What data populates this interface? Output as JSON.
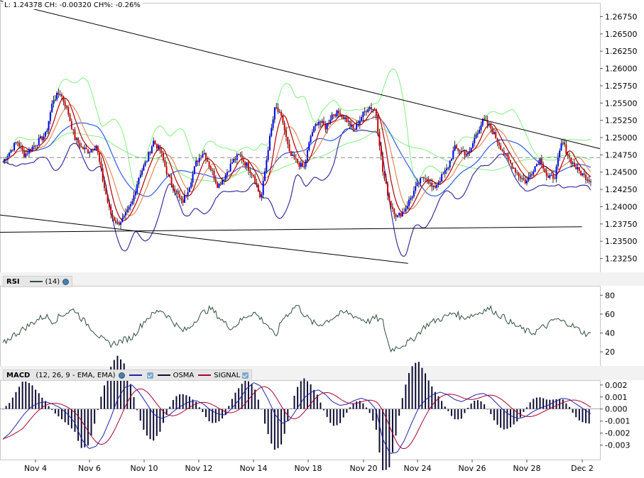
{
  "info_bar": {
    "low": "L: 1.24378",
    "change": "CH: -0.00320",
    "change_pct": "CH%: -0.26%"
  },
  "price_panel": {
    "y_ticks": [
      "1.26750",
      "1.26500",
      "1.26250",
      "1.26000",
      "1.25750",
      "1.25500",
      "1.25250",
      "1.25000",
      "1.24750",
      "1.24500",
      "1.24250",
      "1.24000",
      "1.23750",
      "1.23500",
      "1.23250"
    ],
    "reference_level": 1.2471
  },
  "rsi_panel": {
    "name": "RSI",
    "period": "(14)",
    "y_ticks": [
      "80",
      "60",
      "40",
      "20"
    ]
  },
  "macd_panel": {
    "name": "MACD",
    "params": "(12, 26, 9 - EMA, EMA)",
    "series_labels": [
      "",
      "OSMA",
      "SIGNAL"
    ],
    "y_ticks": [
      "0.002",
      "0.001",
      "0.000",
      "-0.001",
      "-0.002",
      "-0.003"
    ]
  },
  "x_axis": {
    "labels": [
      "Nov 4",
      "Nov 6",
      "Nov 10",
      "Nov 12",
      "Nov 14",
      "Nov 18",
      "Nov 20",
      "Nov 24",
      "Nov 26",
      "Nov 28",
      "Dec 2"
    ]
  },
  "colors": {
    "up_candle": "#0000ff",
    "down_candle": "#d40000",
    "bollinger": "#80f080",
    "envelope": "#3c2f9e",
    "ma_fast": "#b00000",
    "ma_slow": "#e08a5a",
    "ma_blue": "#2d5ce8",
    "rsi_line": "#2f4f3f",
    "macd_line": "#2222aa",
    "signal_line": "#aa0033",
    "osma": "#0d0d33"
  },
  "chart_data": [
    {
      "type": "line",
      "panel": "price",
      "y_ticks": [
        1.2675,
        1.265,
        1.2625,
        1.26,
        1.2575,
        1.255,
        1.2525,
        1.25,
        1.2475,
        1.245,
        1.2425,
        1.24,
        1.2375,
        1.235,
        1.2325
      ],
      "ylim": [
        1.2305,
        1.2695
      ],
      "x_labels": [
        "Nov 4",
        "Nov 6",
        "Nov 10",
        "Nov 12",
        "Nov 14",
        "Nov 18",
        "Nov 20",
        "Nov 24",
        "Nov 26",
        "Nov 28",
        "Dec 2"
      ],
      "close_keypoints": [
        1.2465,
        1.248,
        1.2495,
        1.2475,
        1.2485,
        1.2495,
        1.2505,
        1.2555,
        1.2565,
        1.254,
        1.25,
        1.2485,
        1.248,
        1.249,
        1.2435,
        1.239,
        1.2375,
        1.2385,
        1.2405,
        1.2445,
        1.2465,
        1.2495,
        1.248,
        1.2445,
        1.2425,
        1.2405,
        1.243,
        1.2465,
        1.248,
        1.2455,
        1.243,
        1.2445,
        1.2465,
        1.2475,
        1.246,
        1.2445,
        1.241,
        1.2485,
        1.2545,
        1.2525,
        1.2475,
        1.2465,
        1.2455,
        1.2505,
        1.2525,
        1.2515,
        1.2535,
        1.2535,
        1.2525,
        1.251,
        1.253,
        1.2545,
        1.254,
        1.245,
        1.2405,
        1.2385,
        1.2395,
        1.2415,
        1.2435,
        1.2445,
        1.2425,
        1.244,
        1.2455,
        1.2485,
        1.248,
        1.2475,
        1.2505,
        1.2525,
        1.2515,
        1.2495,
        1.2475,
        1.246,
        1.2445,
        1.2435,
        1.2455,
        1.247,
        1.244,
        1.2445,
        1.2495,
        1.247,
        1.2455,
        1.2445,
        1.2438
      ],
      "reference_level": 1.2471,
      "trendlines": [
        {
          "from": [
            0,
            1.2698
          ],
          "to": [
            1.0,
            1.2484
          ]
        },
        {
          "from": [
            0,
            1.2388
          ],
          "to": [
            0.68,
            1.2318
          ]
        },
        {
          "from": [
            0,
            1.2363
          ],
          "to": [
            0.97,
            1.2371
          ]
        }
      ]
    },
    {
      "type": "line",
      "panel": "rsi",
      "y_ticks": [
        80,
        60,
        40,
        20
      ],
      "ylim": [
        5,
        90
      ],
      "values": [
        28,
        35,
        40,
        45,
        50,
        55,
        58,
        52,
        58,
        62,
        65,
        55,
        48,
        40,
        32,
        28,
        30,
        33,
        35,
        45,
        55,
        60,
        65,
        58,
        50,
        42,
        45,
        55,
        62,
        66,
        58,
        50,
        45,
        52,
        58,
        62,
        55,
        48,
        35,
        55,
        62,
        70,
        60,
        52,
        48,
        52,
        56,
        60,
        62,
        58,
        55,
        52,
        56,
        52,
        22,
        25,
        28,
        32,
        40,
        48,
        52,
        55,
        58,
        62,
        56,
        58,
        60,
        64,
        66,
        60,
        56,
        50,
        46,
        42,
        40,
        45,
        48,
        55,
        52,
        50,
        45,
        40,
        38
      ]
    },
    {
      "type": "line",
      "panel": "macd",
      "y_ticks": [
        0.002,
        0.001,
        0.0,
        -0.001,
        -0.002,
        -0.003
      ],
      "ylim": [
        -0.0042,
        0.0024
      ],
      "macd": [
        -0.0025,
        -0.002,
        -0.0012,
        -0.0004,
        0.0002,
        0.0005,
        0.0006,
        0.0004,
        0.0001,
        -0.0004,
        -0.0011,
        -0.0025,
        -0.0033,
        -0.0031,
        -0.0022,
        -0.0008,
        0.0008,
        0.0018,
        0.002,
        0.0014,
        0.0005,
        -0.0004,
        -0.0008,
        -0.0006,
        -0.0001,
        0.0003,
        0.0006,
        0.0007,
        0.0004,
        -0.0001,
        -0.0004,
        -0.0005,
        0.0001,
        0.0008,
        0.0017,
        0.0022,
        0.0019,
        0.0008,
        -0.0005,
        -0.0012,
        -0.0009,
        0.0,
        0.0009,
        0.0014,
        0.0016,
        0.0012,
        0.0006,
        0.0003,
        0.0004,
        0.0007,
        0.0009,
        0.0007,
        0.0,
        -0.0025,
        -0.0037,
        -0.0036,
        -0.0026,
        -0.0012,
        0.0001,
        0.0008,
        0.0012,
        0.0014,
        0.0012,
        0.0008,
        0.0006,
        0.0009,
        0.0012,
        0.0013,
        0.001,
        0.0004,
        -0.0002,
        -0.0006,
        -0.0008,
        -0.0006,
        -0.0002,
        0.0001,
        0.0003,
        0.0006,
        0.0009,
        0.0008,
        0.0004,
        0.0,
        -0.0004
      ],
      "osma_scale": 0.25
    }
  ]
}
